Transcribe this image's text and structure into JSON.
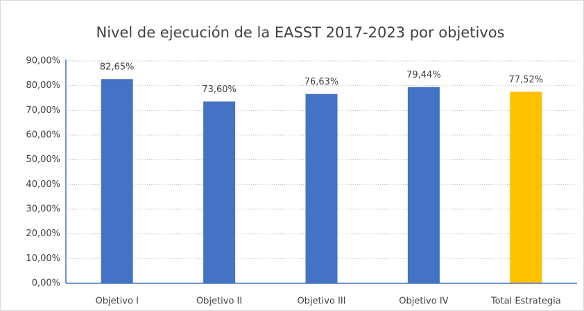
{
  "chart_data": {
    "type": "bar",
    "title": "Nivel de ejecución de la EASST 2017-2023 por objetivos",
    "categories": [
      "Objetivo I",
      "Objetivo II",
      "Objetivo III",
      "Objetivo IV",
      "Total Estrategia"
    ],
    "values": [
      82.65,
      73.6,
      76.63,
      79.44,
      77.52
    ],
    "value_labels": [
      "82,65%",
      "73,60%",
      "76,63%",
      "79,44%",
      "77,52%"
    ],
    "colors": [
      "#4472c4",
      "#4472c4",
      "#4472c4",
      "#4472c4",
      "#ffc000"
    ],
    "ylim": [
      0,
      90
    ],
    "yticks": [
      {
        "value": 0,
        "label": "0,00%"
      },
      {
        "value": 10,
        "label": "10,00%"
      },
      {
        "value": 20,
        "label": "20,00%"
      },
      {
        "value": 30,
        "label": "30,00%"
      },
      {
        "value": 40,
        "label": "40,00%"
      },
      {
        "value": 50,
        "label": "50,00%"
      },
      {
        "value": 60,
        "label": "60,00%"
      },
      {
        "value": 70,
        "label": "70,00%"
      },
      {
        "value": 80,
        "label": "80,00%"
      },
      {
        "value": 90,
        "label": "90,00%"
      }
    ],
    "grid": true
  }
}
